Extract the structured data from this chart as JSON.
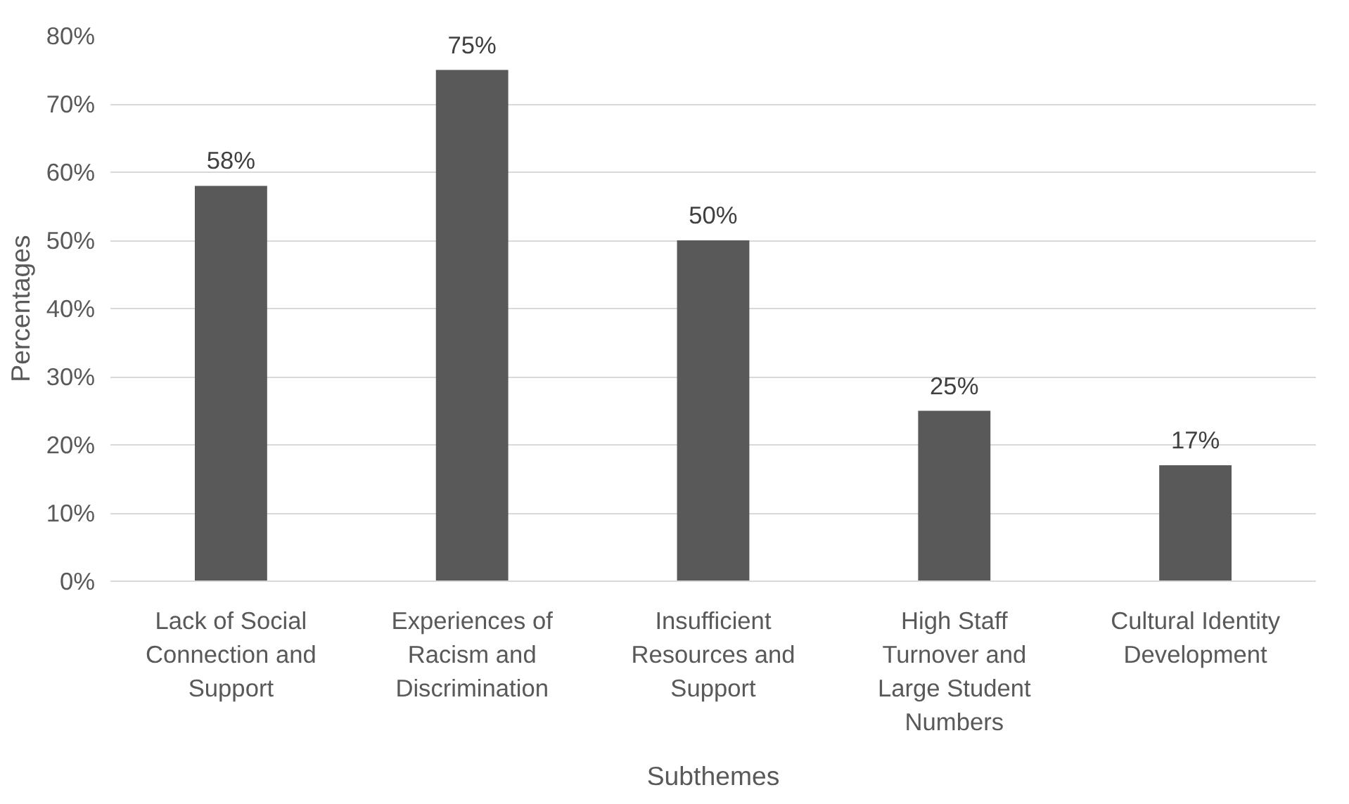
{
  "chart_data": {
    "type": "bar",
    "xlabel": "Subthemes",
    "ylabel": "Percentages",
    "categories": [
      "Lack of Social Connection and Support",
      "Experiences of Racism and Discrimination",
      "Insufficient Resources and Support",
      "High Staff Turnover and Large Student Numbers",
      "Cultural Identity Development"
    ],
    "values": [
      58,
      75,
      50,
      25,
      17
    ],
    "value_labels": [
      "58%",
      "75%",
      "50%",
      "25%",
      "17%"
    ],
    "color": "#595959",
    "ylim": [
      0,
      80
    ],
    "yticks": [
      {
        "value": 0,
        "label": "0%"
      },
      {
        "value": 10,
        "label": "10%"
      },
      {
        "value": 20,
        "label": "20%"
      },
      {
        "value": 30,
        "label": "30%"
      },
      {
        "value": 40,
        "label": "40%"
      },
      {
        "value": 50,
        "label": "50%"
      },
      {
        "value": 60,
        "label": "60%"
      },
      {
        "value": 70,
        "label": "70%"
      },
      {
        "value": 80,
        "label": "80%"
      }
    ],
    "grid": "y"
  }
}
